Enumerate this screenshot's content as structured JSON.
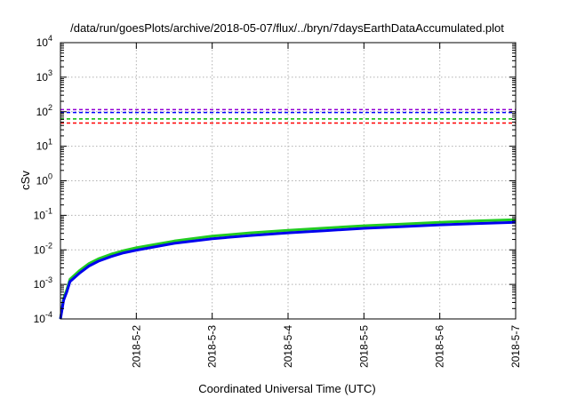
{
  "chart_data": {
    "type": "line",
    "title": "/data/run/goesPlots/archive/2018-05-07/flux/../bryn/7daysEarthDataAccumulated.plot",
    "xlabel": "Coordinated Universal Time (UTC)",
    "ylabel": "cSv",
    "yscale": "log",
    "ylim": [
      0.0001,
      10000
    ],
    "xlim": [
      "2018-05-01",
      "2018-05-07"
    ],
    "grid": true,
    "y_ticks": [
      {
        "base": "10",
        "exp": "-4",
        "value": 0.0001
      },
      {
        "base": "10",
        "exp": "-3",
        "value": 0.001
      },
      {
        "base": "10",
        "exp": "-2",
        "value": 0.01
      },
      {
        "base": "10",
        "exp": "-1",
        "value": 0.1
      },
      {
        "base": "10",
        "exp": "0",
        "value": 1
      },
      {
        "base": "10",
        "exp": "1",
        "value": 10
      },
      {
        "base": "10",
        "exp": "2",
        "value": 100
      },
      {
        "base": "10",
        "exp": "3",
        "value": 1000
      },
      {
        "base": "10",
        "exp": "4",
        "value": 10000
      }
    ],
    "x_ticks": [
      "2018-5-2",
      "2018-5-3",
      "2018-5-4",
      "2018-5-5",
      "2018-5-6",
      "2018-5-7"
    ],
    "thresholds": [
      {
        "value": 115,
        "color": "#9400d3"
      },
      {
        "value": 95,
        "color": "#0000ff"
      },
      {
        "value": 62,
        "color": "#00bb00"
      },
      {
        "value": 47,
        "color": "#ff0000"
      }
    ],
    "series": [
      {
        "color": "#22cc22",
        "x": [
          "2018-05-01 00:00",
          "2018-05-01 01:00",
          "2018-05-01 02:00",
          "2018-05-01 03:00",
          "2018-05-01 06:00",
          "2018-05-01 09:00",
          "2018-05-01 12:00",
          "2018-05-01 16:00",
          "2018-05-01 20:00",
          "2018-05-02 00:00",
          "2018-05-02 12:00",
          "2018-05-03 00:00",
          "2018-05-03 12:00",
          "2018-05-04 00:00",
          "2018-05-04 12:00",
          "2018-05-05 00:00",
          "2018-05-05 12:00",
          "2018-05-06 00:00",
          "2018-05-06 12:00",
          "2018-05-07 00:00"
        ],
        "values": [
          0.0001,
          0.0004,
          0.0007,
          0.0014,
          0.0025,
          0.004,
          0.0055,
          0.0075,
          0.0095,
          0.0115,
          0.018,
          0.025,
          0.031,
          0.037,
          0.043,
          0.05,
          0.056,
          0.063,
          0.069,
          0.075
        ]
      },
      {
        "color": "#0000ee",
        "x": [
          "2018-05-01 00:00",
          "2018-05-01 01:00",
          "2018-05-01 02:00",
          "2018-05-01 03:00",
          "2018-05-01 06:00",
          "2018-05-01 09:00",
          "2018-05-01 12:00",
          "2018-05-01 16:00",
          "2018-05-01 20:00",
          "2018-05-02 00:00",
          "2018-05-02 12:00",
          "2018-05-03 00:00",
          "2018-05-03 12:00",
          "2018-05-04 00:00",
          "2018-05-04 12:00",
          "2018-05-05 00:00",
          "2018-05-05 12:00",
          "2018-05-06 00:00",
          "2018-05-06 12:00",
          "2018-05-07 00:00"
        ],
        "values": [
          0.0001,
          0.00035,
          0.0006,
          0.0012,
          0.0021,
          0.0034,
          0.0047,
          0.0064,
          0.0082,
          0.0098,
          0.0155,
          0.021,
          0.026,
          0.031,
          0.036,
          0.042,
          0.047,
          0.053,
          0.058,
          0.063
        ]
      }
    ]
  }
}
